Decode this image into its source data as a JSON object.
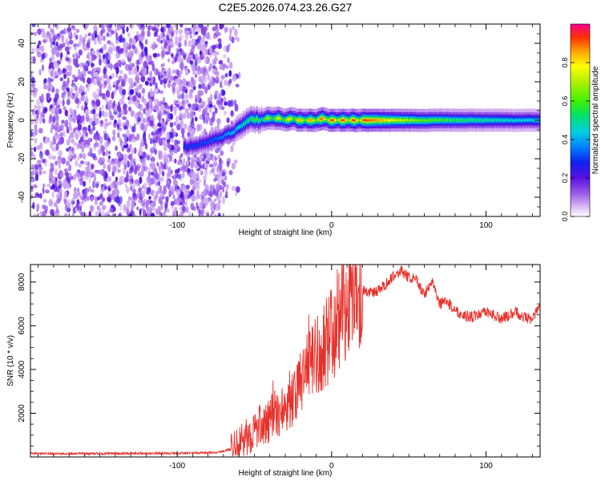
{
  "title": "C2E5.2026.074.23.26.G27",
  "chart_data": [
    {
      "type": "heatmap",
      "title": "C2E5.2026.074.23.26.G27",
      "xlabel": "Height of straight line (km)",
      "ylabel": "Frequency (Hz)",
      "xlim": [
        -195,
        135
      ],
      "ylim": [
        -50,
        50
      ],
      "xticks": [
        -100,
        0,
        100
      ],
      "xtick_labels": [
        "-100",
        "0",
        "100"
      ],
      "yticks": [
        -40,
        -20,
        0,
        20,
        40
      ],
      "ytick_labels": [
        "-40",
        "-20",
        "0",
        "20",
        "40"
      ],
      "grid": false,
      "noise_region_x": [
        -195,
        -62
      ],
      "ridge": {
        "x": [
          -96,
          -88,
          -80,
          -72,
          -66,
          -60,
          -56,
          -52,
          -50,
          -46,
          -42,
          -38,
          -34,
          -30,
          -26,
          -22,
          -18,
          -14,
          -10,
          -6,
          -2,
          2,
          6,
          10,
          14,
          18,
          22,
          30,
          40,
          60,
          80,
          100,
          120,
          135
        ],
        "frequency": [
          -14,
          -13,
          -11,
          -9,
          -7,
          -4,
          -1,
          1,
          0,
          0,
          1,
          1,
          1,
          0,
          1,
          0,
          0,
          0,
          0,
          1,
          0,
          0,
          0,
          0,
          0,
          0,
          0,
          0,
          0,
          0,
          0,
          0,
          0,
          0
        ],
        "peak_amplitude": [
          0.3,
          0.3,
          0.32,
          0.36,
          0.4,
          0.45,
          0.5,
          0.55,
          0.6,
          0.65,
          0.7,
          0.75,
          0.78,
          0.8,
          0.82,
          0.85,
          0.85,
          0.88,
          0.9,
          0.92,
          0.93,
          0.95,
          0.95,
          0.95,
          0.95,
          0.95,
          0.92,
          0.85,
          0.75,
          0.62,
          0.55,
          0.5,
          0.45,
          0.45
        ]
      },
      "colorbar": {
        "label": "Normalized spectral amplitude",
        "range": [
          0.0,
          1.0
        ],
        "ticks": [
          0.0,
          0.2,
          0.4,
          0.6,
          0.8
        ],
        "tick_labels": [
          "0.0",
          "0.2",
          "0.4",
          "0.6",
          "0.8"
        ]
      }
    },
    {
      "type": "line",
      "xlabel": "Height of straight line (km)",
      "ylabel": "SNR (10 * v/v)",
      "xlim": [
        -195,
        135
      ],
      "ylim": [
        0,
        8800
      ],
      "xticks": [
        -100,
        0,
        100
      ],
      "xtick_labels": [
        "-100",
        "0",
        "100"
      ],
      "yticks": [
        2000,
        4000,
        6000,
        8000
      ],
      "ytick_labels": [
        "2000",
        "4000",
        "6000",
        "8000"
      ],
      "color": "#e8302a",
      "series": [
        {
          "name": "SNR",
          "x": [
            -195,
            -150,
            -100,
            -75,
            -65,
            -55,
            -45,
            -35,
            -25,
            -20,
            -15,
            -10,
            -5,
            0,
            5,
            10,
            15,
            20,
            25,
            30,
            35,
            40,
            45,
            50,
            55,
            60,
            65,
            70,
            75,
            80,
            85,
            90,
            95,
            100,
            105,
            110,
            115,
            120,
            125,
            130,
            135
          ],
          "y": [
            150,
            150,
            170,
            200,
            350,
            900,
            1500,
            2000,
            2600,
            3300,
            4200,
            4700,
            5100,
            5600,
            6400,
            7000,
            7500,
            7700,
            7500,
            7600,
            7900,
            8300,
            8500,
            8200,
            8100,
            7400,
            8100,
            7000,
            7100,
            6700,
            6500,
            6400,
            6500,
            6600,
            6500,
            6300,
            6500,
            6600,
            6400,
            6300,
            6900
          ]
        }
      ]
    }
  ]
}
